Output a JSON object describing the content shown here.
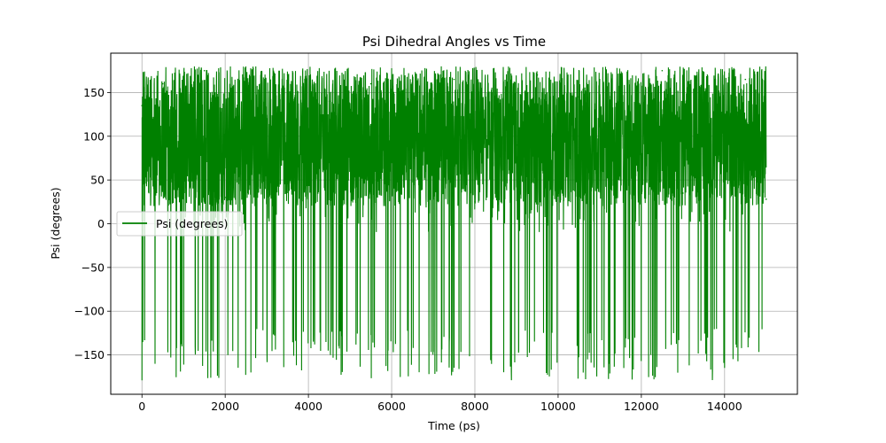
{
  "chart_data": {
    "type": "line",
    "title": "Psi Dihedral Angles vs Time",
    "xlabel": "Time (ps)",
    "ylabel": "Psi (degrees)",
    "xlim": [
      -750,
      15750
    ],
    "ylim": [
      -195,
      195
    ],
    "x_ticks": [
      0,
      2000,
      4000,
      6000,
      8000,
      10000,
      12000,
      14000
    ],
    "x_tick_labels": [
      "0",
      "2000",
      "4000",
      "6000",
      "8000",
      "10000",
      "12000",
      "14000"
    ],
    "y_ticks": [
      -150,
      -100,
      -50,
      0,
      50,
      100,
      150
    ],
    "y_tick_labels": [
      "−150",
      "−100",
      "−50",
      "0",
      "50",
      "100",
      "150"
    ],
    "grid": true,
    "legend_position": "center-left",
    "series": [
      {
        "name": "Psi (degrees)",
        "color": "#008000",
        "x_start": 0,
        "x_end": 15000,
        "typical_range": [
          20,
          180
        ],
        "excursions_below": -180,
        "sample_points": [
          {
            "x": 0,
            "y": 135
          },
          {
            "x": 500,
            "y": 160
          },
          {
            "x": 1000,
            "y": 60
          },
          {
            "x": 1500,
            "y": 175
          },
          {
            "x": 2000,
            "y": 30
          },
          {
            "x": 2500,
            "y": 150
          },
          {
            "x": 3000,
            "y": 120
          },
          {
            "x": 3500,
            "y": 170
          },
          {
            "x": 4000,
            "y": 45
          },
          {
            "x": 4500,
            "y": 140
          },
          {
            "x": 5000,
            "y": 100
          },
          {
            "x": 5500,
            "y": 160
          },
          {
            "x": 6000,
            "y": 70
          },
          {
            "x": 6500,
            "y": 150
          },
          {
            "x": 7000,
            "y": 40
          },
          {
            "x": 7500,
            "y": 165
          },
          {
            "x": 8000,
            "y": 25
          },
          {
            "x": 8500,
            "y": 155
          },
          {
            "x": 9000,
            "y": 90
          },
          {
            "x": 9500,
            "y": 170
          },
          {
            "x": 10000,
            "y": 50
          },
          {
            "x": 10500,
            "y": 145
          },
          {
            "x": 11000,
            "y": 135
          },
          {
            "x": 11500,
            "y": 160
          },
          {
            "x": 12000,
            "y": 80
          },
          {
            "x": 12500,
            "y": 175
          },
          {
            "x": 13000,
            "y": 35
          },
          {
            "x": 13500,
            "y": 150
          },
          {
            "x": 14000,
            "y": 110
          },
          {
            "x": 14500,
            "y": 165
          },
          {
            "x": 15000,
            "y": 28
          }
        ]
      }
    ]
  }
}
